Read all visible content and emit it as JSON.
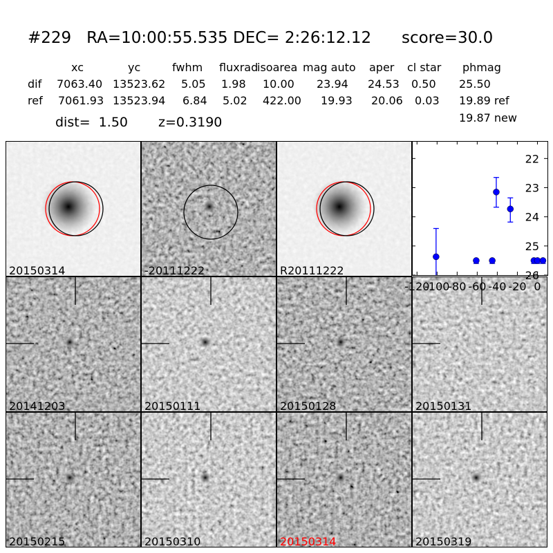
{
  "header": {
    "title": "#229   RA=10:00:55.535 DEC= 2:26:12.12      score=30.0",
    "columns": [
      "xc",
      "yc",
      "fwhm",
      "fluxrad",
      "isoarea",
      "mag auto",
      "aper",
      "cl star",
      "phmag"
    ],
    "rows": [
      {
        "label": "dif",
        "values": [
          "7063.40",
          "13523.62",
          "5.05",
          "1.98",
          "10.00",
          "23.94",
          "24.53",
          "0.50",
          "25.50"
        ]
      },
      {
        "label": "ref",
        "values": [
          "7061.93",
          "13523.94",
          "6.84",
          "5.02",
          "422.00",
          "19.93",
          "20.06",
          "0.03",
          "19.89 ref"
        ]
      }
    ],
    "phmag_new": "19.87 new",
    "dist": "dist=  1.50",
    "z": "z=0.3190"
  },
  "stamps": [
    {
      "label": "20150314",
      "kind": "ref"
    },
    {
      "label": "-20111222",
      "kind": "diff"
    },
    {
      "label": "R20111222",
      "kind": "ref"
    },
    {
      "label": "20141203",
      "kind": "epoch"
    },
    {
      "label": "20150111",
      "kind": "epoch"
    },
    {
      "label": "20150128",
      "kind": "epoch"
    },
    {
      "label": "20150131",
      "kind": "epoch"
    },
    {
      "label": "20150215",
      "kind": "epoch"
    },
    {
      "label": "20150310",
      "kind": "epoch"
    },
    {
      "label": "20150314",
      "kind": "epoch",
      "color": "#ff0000"
    },
    {
      "label": "20150319",
      "kind": "epoch"
    }
  ],
  "chart_data": {
    "type": "scatter",
    "title": "",
    "xlabel": "",
    "ylabel": "",
    "xlim": [
      -125,
      10
    ],
    "ylim": [
      26,
      21.4
    ],
    "y_inverted": true,
    "xticks": [
      -120,
      -100,
      -80,
      -60,
      -40,
      -20,
      0
    ],
    "yticks": [
      22,
      23,
      24,
      25,
      26
    ],
    "color": "#0000ff",
    "points": [
      {
        "x": -101,
        "y": 25.37,
        "err_up": 0.97,
        "err_down": 1.0
      },
      {
        "x": -61,
        "y": 25.5,
        "err_up": 0,
        "err_down": 0.1
      },
      {
        "x": -45,
        "y": 25.5,
        "err_up": 0,
        "err_down": 0.1
      },
      {
        "x": -41,
        "y": 23.15,
        "err_up": 0.5,
        "err_down": 0.52
      },
      {
        "x": -27,
        "y": 23.73,
        "err_up": 0.38,
        "err_down": 0.45
      },
      {
        "x": -3.5,
        "y": 25.5,
        "err_up": 0,
        "err_down": 0.1
      },
      {
        "x": 0,
        "y": 25.5,
        "err_up": 0,
        "err_down": 0.1
      },
      {
        "x": 5.5,
        "y": 25.5,
        "err_up": 0,
        "err_down": 0.1
      }
    ]
  }
}
